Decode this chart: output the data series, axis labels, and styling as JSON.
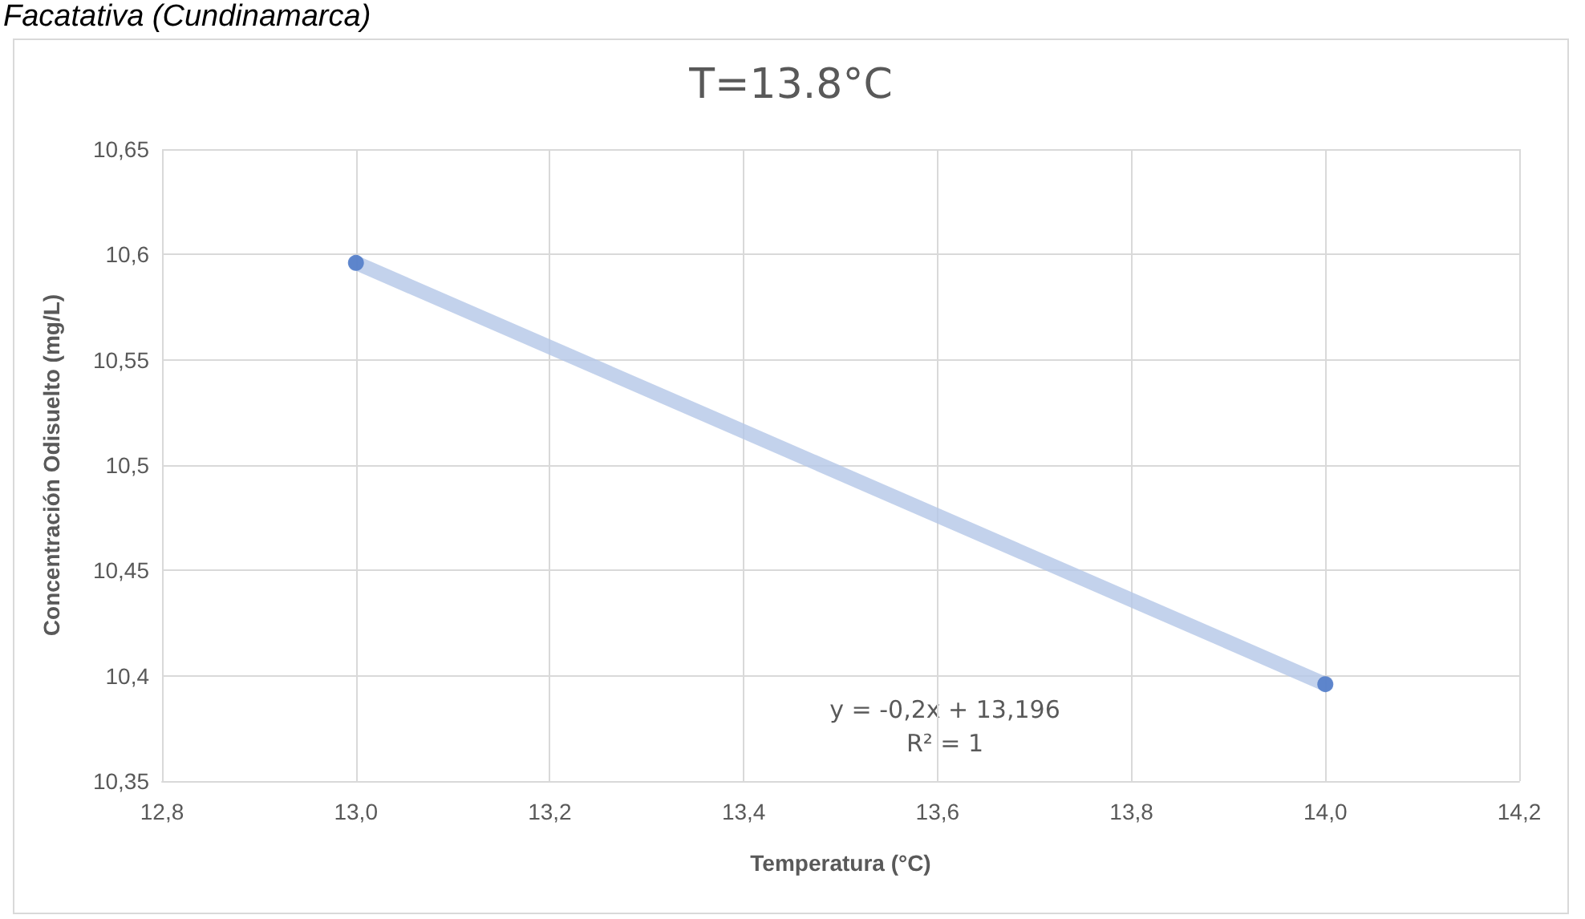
{
  "chart_data": {
    "type": "scatter",
    "title": "T=13.8°C",
    "xlabel": "Temperatura (°C)",
    "ylabel": "Concentración Odisuelto (mg/L)",
    "annotations": [
      "Facatativa (Cundinamarca)",
      "y = -0,2x + 13,196",
      "R² = 1"
    ],
    "x": [
      13.0,
      14.0
    ],
    "series": [
      {
        "type": "line",
        "color": "#b4c7e7",
        "marker": "none",
        "values": [
          10.596,
          10.396
        ]
      },
      {
        "color": "#4472c4",
        "values": [
          10.596,
          10.396
        ]
      }
    ],
    "xlim": [
      12.8,
      14.2
    ],
    "xticks": [
      {
        "value": 12.8,
        "label": "12,8"
      },
      {
        "value": 13.0,
        "label": "13,0"
      },
      {
        "value": 13.2,
        "label": "13,2"
      },
      {
        "value": 13.4,
        "label": "13,4"
      },
      {
        "value": 13.6,
        "label": "13,6"
      },
      {
        "value": 13.8,
        "label": "13,8"
      },
      {
        "value": 14.0,
        "label": "14,0"
      },
      {
        "value": 14.2,
        "label": "14,2"
      }
    ],
    "ylim": [
      10.35,
      10.65
    ],
    "yticks": [
      {
        "value": 10.35,
        "label": "10,35"
      },
      {
        "value": 10.4,
        "label": "10,4"
      },
      {
        "value": 10.45,
        "label": "10,45"
      },
      {
        "value": 10.5,
        "label": "10,5"
      },
      {
        "value": 10.55,
        "label": "10,55"
      },
      {
        "value": 10.6,
        "label": "10,6"
      },
      {
        "value": 10.65,
        "label": "10,65"
      }
    ],
    "grid": true,
    "marker": "circle"
  }
}
